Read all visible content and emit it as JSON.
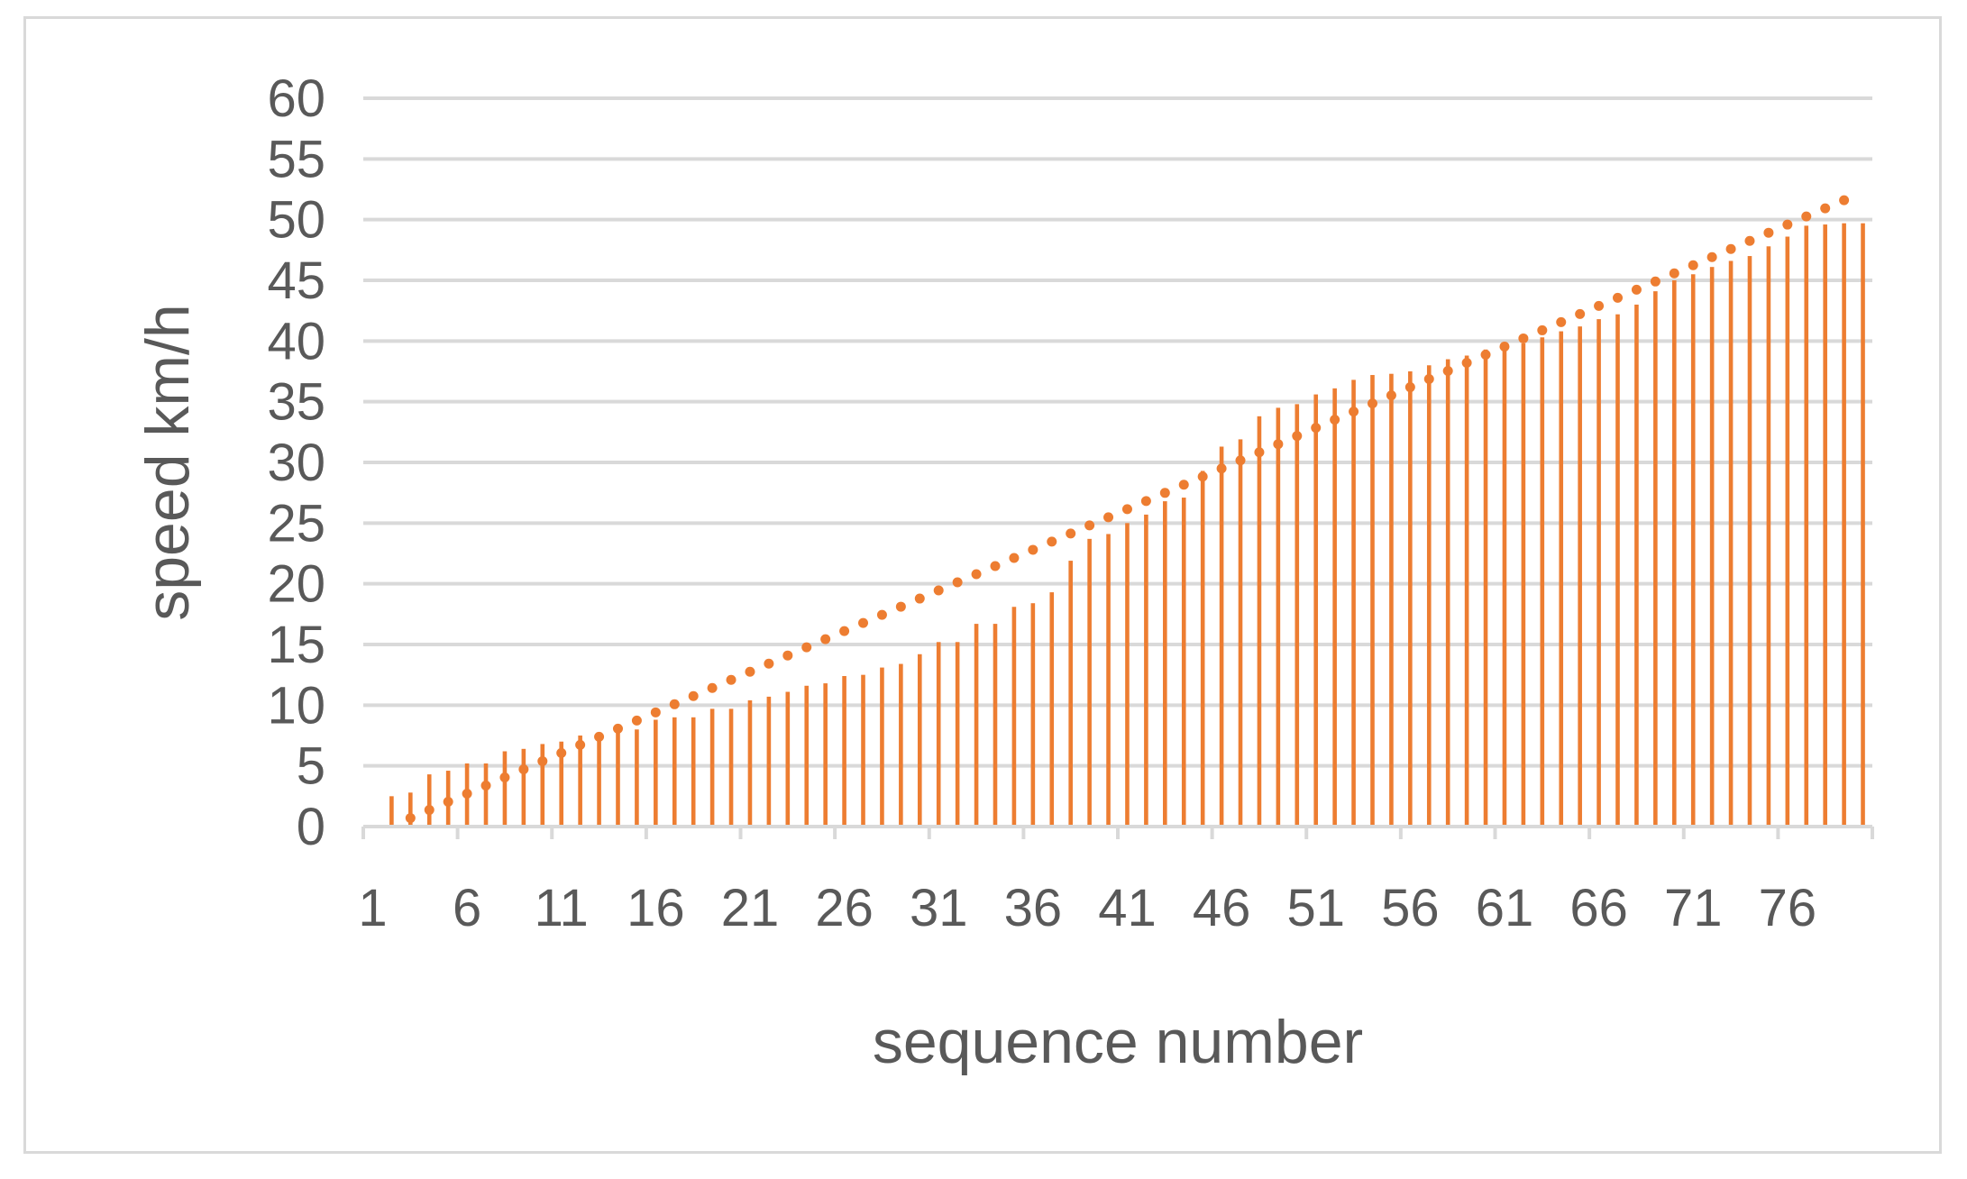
{
  "chart_data": {
    "type": "bar",
    "title": "",
    "xlabel": "sequence number",
    "ylabel": "speed km/h",
    "ylim": [
      0,
      60
    ],
    "yticks": [
      0,
      5,
      10,
      15,
      20,
      25,
      30,
      35,
      40,
      45,
      50,
      55,
      60
    ],
    "xlim": [
      1,
      81
    ],
    "xticks": [
      1,
      6,
      11,
      16,
      21,
      26,
      31,
      36,
      41,
      46,
      51,
      56,
      61,
      66,
      71,
      76
    ],
    "grid": true,
    "legend": "none",
    "colors": {
      "bar": "#ed7d31",
      "trend": "#ed7d31",
      "grid": "#d9d9d9",
      "axis": "#d9d9d9",
      "text": "#595959"
    },
    "series": [
      {
        "type": "bar",
        "x": [
          2,
          3,
          4,
          5,
          6,
          7,
          8,
          9,
          10,
          11,
          12,
          13,
          14,
          15,
          16,
          17,
          18,
          19,
          20,
          21,
          22,
          23,
          24,
          25,
          26,
          27,
          28,
          29,
          30,
          31,
          32,
          33,
          34,
          35,
          36,
          37,
          38,
          39,
          40,
          41,
          42,
          43,
          44,
          45,
          46,
          47,
          48,
          49,
          50,
          51,
          52,
          53,
          54,
          55,
          56,
          57,
          58,
          59,
          60,
          61,
          62,
          63,
          64,
          65,
          66,
          67,
          68,
          69,
          70,
          71,
          72,
          73,
          74,
          75,
          76,
          77,
          78,
          79,
          80
        ],
        "values": [
          2.5,
          2.8,
          4.3,
          4.6,
          5.2,
          5.2,
          6.2,
          6.4,
          6.8,
          7.0,
          7.5,
          7.5,
          7.8,
          8.0,
          8.8,
          9.0,
          9.0,
          9.7,
          9.7,
          10.4,
          10.7,
          11.1,
          11.6,
          11.8,
          12.4,
          12.5,
          13.1,
          13.4,
          14.2,
          15.2,
          15.2,
          16.7,
          16.7,
          18.1,
          18.4,
          19.3,
          21.9,
          23.7,
          24.1,
          25.0,
          25.7,
          26.8,
          27.1,
          29.3,
          31.3,
          31.9,
          33.8,
          34.5,
          34.8,
          35.6,
          36.1,
          36.8,
          37.2,
          37.3,
          37.5,
          38.0,
          38.5,
          38.8,
          39.3,
          39.6,
          39.8,
          40.3,
          40.8,
          41.2,
          41.8,
          42.2,
          43.0,
          44.1,
          45.0,
          45.5,
          46.1,
          46.6,
          47.0,
          47.8,
          48.6,
          49.5,
          49.6,
          49.7,
          49.7
        ]
      },
      {
        "type": "dotted-trend",
        "x": [
          3,
          79
        ],
        "values": [
          0.7,
          51.6
        ]
      }
    ]
  }
}
